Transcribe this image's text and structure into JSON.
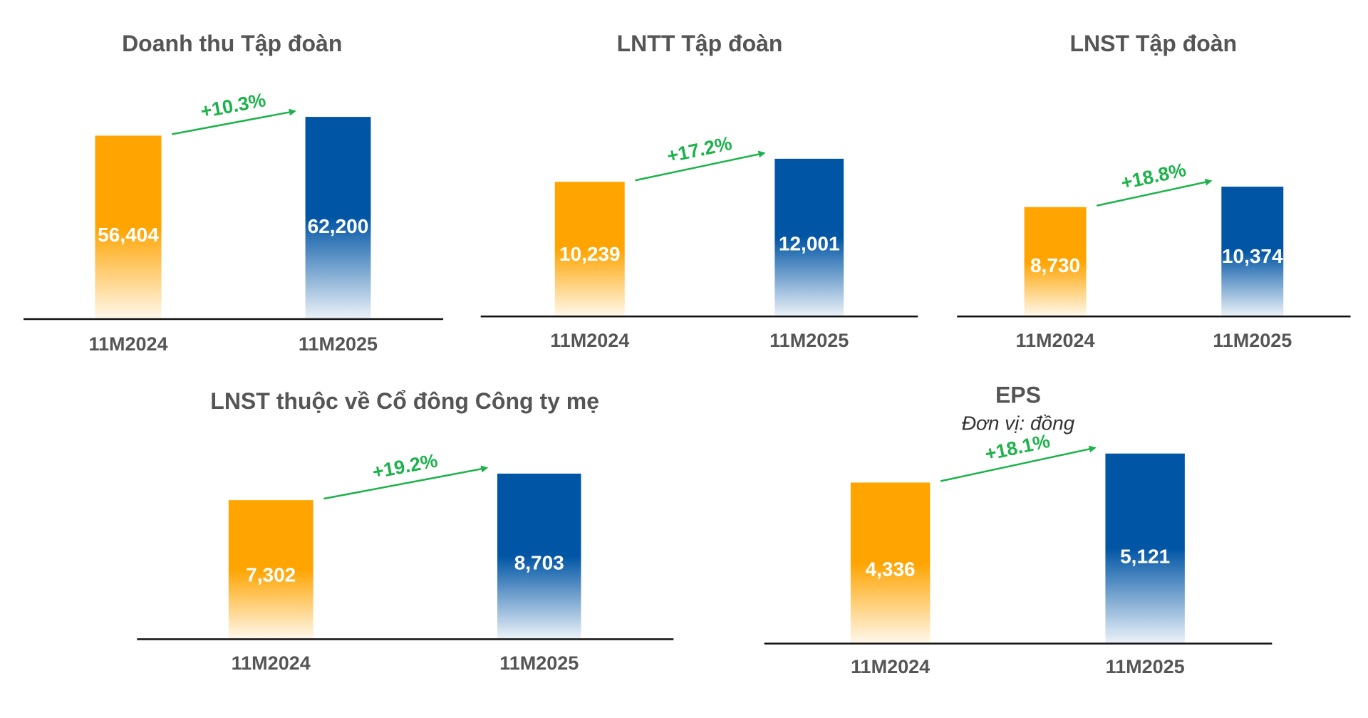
{
  "chart_data": [
    {
      "type": "bar",
      "title": "Doanh thu Tập đoàn",
      "categories": [
        "11M2024",
        "11M2025"
      ],
      "values": [
        56404,
        62200
      ],
      "value_labels": [
        "56,404",
        "62,200"
      ],
      "annotation": "+10.3%",
      "colors": [
        "#FFA400",
        "#0055A5"
      ]
    },
    {
      "type": "bar",
      "title": "LNTT Tập đoàn",
      "categories": [
        "11M2024",
        "11M2025"
      ],
      "values": [
        10239,
        12001
      ],
      "value_labels": [
        "10,239",
        "12,001"
      ],
      "annotation": "+17.2%",
      "colors": [
        "#FFA400",
        "#0055A5"
      ]
    },
    {
      "type": "bar",
      "title": "LNST Tập đoàn",
      "categories": [
        "11M2024",
        "11M2025"
      ],
      "values": [
        8730,
        10374
      ],
      "value_labels": [
        "8,730",
        "10,374"
      ],
      "annotation": "+18.8%",
      "colors": [
        "#FFA400",
        "#0055A5"
      ]
    },
    {
      "type": "bar",
      "title": "LNST thuộc về Cổ đông Công ty mẹ",
      "categories": [
        "11M2024",
        "11M2025"
      ],
      "values": [
        7302,
        8703
      ],
      "value_labels": [
        "7,302",
        "8,703"
      ],
      "annotation": "+19.2%",
      "colors": [
        "#FFA400",
        "#0055A5"
      ]
    },
    {
      "type": "bar",
      "title": "EPS",
      "subtitle": "Đơn vị: đồng",
      "categories": [
        "11M2024",
        "11M2025"
      ],
      "values": [
        4336,
        5121
      ],
      "value_labels": [
        "4,336",
        "5,121"
      ],
      "annotation": "+18.1%",
      "colors": [
        "#FFA400",
        "#0055A5"
      ]
    }
  ]
}
